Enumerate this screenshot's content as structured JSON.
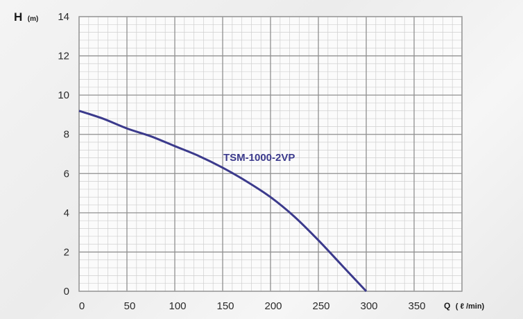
{
  "chart_data": {
    "type": "line",
    "ylabel_main": "H",
    "ylabel_unit": "(m)",
    "xlabel_main": "Q",
    "xlabel_unit": "( ℓ /min)",
    "xlim": [
      0,
      400
    ],
    "ylim": [
      0,
      14
    ],
    "x_ticks": [
      0,
      50,
      100,
      150,
      200,
      250,
      300,
      350
    ],
    "y_ticks": [
      0,
      2,
      4,
      6,
      8,
      10,
      12,
      14
    ],
    "x_tick_labels": [
      "0",
      "50",
      "100",
      "150",
      "200",
      "250",
      "300",
      "350"
    ],
    "y_tick_labels": [
      "0",
      "2",
      "4",
      "6",
      "8",
      "10",
      "12",
      "14"
    ],
    "grid": true,
    "series": [
      {
        "name": "TSM-1000-2VP",
        "color": "#3b3a8c",
        "x": [
          0,
          25,
          50,
          75,
          100,
          125,
          150,
          175,
          200,
          225,
          250,
          275,
          300
        ],
        "y": [
          9.2,
          8.8,
          8.3,
          7.9,
          7.4,
          6.9,
          6.3,
          5.6,
          4.8,
          3.8,
          2.6,
          1.3,
          0
        ]
      }
    ]
  }
}
